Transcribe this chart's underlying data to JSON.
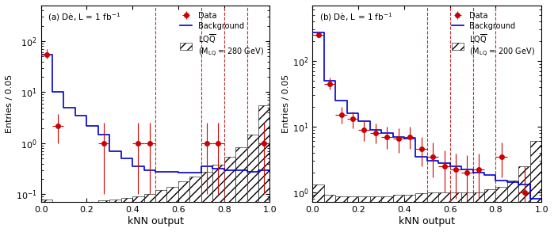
{
  "panel_a": {
    "title": "(a) Dè, L = 1 fb$^{-1}$",
    "ylabel": "Entries / 0.05",
    "xlabel": "kNN output",
    "ylim_log": [
      0.07,
      500
    ],
    "vlines": [
      0.5,
      0.7,
      0.8,
      0.9
    ],
    "bg_bins": [
      0.0,
      0.05,
      0.1,
      0.15,
      0.2,
      0.25,
      0.3,
      0.35,
      0.4,
      0.45,
      0.5,
      0.55,
      0.6,
      0.65,
      0.7,
      0.75,
      0.8,
      0.85,
      0.9,
      0.95,
      1.0
    ],
    "bg_vals": [
      55,
      10,
      5,
      3.5,
      2.2,
      1.5,
      0.7,
      0.5,
      0.35,
      0.3,
      0.28,
      0.28,
      0.27,
      0.27,
      0.35,
      0.32,
      0.3,
      0.3,
      0.28,
      0.3
    ],
    "signal_vals": [
      0.08,
      0.07,
      0.07,
      0.07,
      0.07,
      0.075,
      0.08,
      0.085,
      0.09,
      0.1,
      0.12,
      0.14,
      0.18,
      0.22,
      0.28,
      0.38,
      0.55,
      0.85,
      1.5,
      5.5
    ],
    "data_x": [
      0.025,
      0.075,
      0.275,
      0.425,
      0.475,
      0.725,
      0.775,
      0.975
    ],
    "data_y": [
      55,
      2.2,
      1.0,
      1.0,
      1.0,
      1.0,
      1.0,
      1.0
    ],
    "data_yerr_lo": [
      10,
      1.2,
      0.9,
      0.9,
      0.9,
      0.9,
      0.9,
      0.9
    ],
    "data_yerr_hi": [
      15,
      1.5,
      1.5,
      1.5,
      1.5,
      1.5,
      1.5,
      1.5
    ],
    "data_xerr": [
      0.025,
      0.025,
      0.025,
      0.025,
      0.025,
      0.025,
      0.025,
      0.025
    ],
    "lq_label_line1": "LQ$\\overline{\\mathrm{Q}}$",
    "lq_label_line2": "(M$_{\\mathrm{LQ}}$ = 280 GeV)"
  },
  "panel_b": {
    "title": "(b) Dè, L = 1 fb$^{-1}$",
    "ylabel": "Entries / 0.05",
    "xlabel": "kNN output",
    "ylim_log": [
      0.7,
      700
    ],
    "vlines": [
      0.5,
      0.6,
      0.7,
      0.8
    ],
    "bg_bins": [
      0.0,
      0.05,
      0.1,
      0.15,
      0.2,
      0.25,
      0.3,
      0.35,
      0.4,
      0.45,
      0.5,
      0.55,
      0.6,
      0.65,
      0.7,
      0.75,
      0.8,
      0.85,
      0.9,
      0.95,
      1.0
    ],
    "bg_vals": [
      270,
      50,
      25,
      16,
      12,
      9,
      8,
      7,
      6.5,
      3.5,
      3.0,
      2.8,
      2.5,
      2.2,
      2.0,
      1.8,
      1.5,
      1.4,
      1.3,
      0.8
    ],
    "signal_vals": [
      1.3,
      0.9,
      0.85,
      0.85,
      0.85,
      0.85,
      0.85,
      0.9,
      0.92,
      0.95,
      1.0,
      1.0,
      1.0,
      1.0,
      1.0,
      1.1,
      1.2,
      1.5,
      2.5,
      6.0
    ],
    "data_x": [
      0.025,
      0.075,
      0.125,
      0.175,
      0.225,
      0.275,
      0.325,
      0.375,
      0.425,
      0.475,
      0.525,
      0.575,
      0.625,
      0.675,
      0.725,
      0.825,
      0.925
    ],
    "data_y": [
      250,
      45,
      15,
      13,
      9,
      8,
      7,
      6.5,
      7,
      4.5,
      3.5,
      2.5,
      2.2,
      2.0,
      2.2,
      3.5,
      1.0
    ],
    "data_yerr_lo": [
      20,
      8,
      4,
      3.5,
      3,
      2.5,
      2.5,
      2.5,
      2.5,
      2.0,
      1.8,
      1.5,
      1.4,
      1.4,
      1.4,
      1.8,
      0.9
    ],
    "data_yerr_hi": [
      25,
      10,
      5,
      4,
      3.5,
      3,
      3,
      3,
      3,
      2.5,
      2.2,
      1.8,
      1.7,
      1.7,
      1.7,
      2.2,
      1.5
    ],
    "data_xerr": [
      0.025,
      0.025,
      0.025,
      0.025,
      0.025,
      0.025,
      0.025,
      0.025,
      0.025,
      0.025,
      0.025,
      0.025,
      0.025,
      0.025,
      0.025,
      0.025,
      0.025
    ],
    "lq_label_line1": "LQ$\\overline{\\mathrm{Q}}$",
    "lq_label_line2": "(M$_{\\mathrm{LQ}}$ = 200 GeV)"
  },
  "bg_color": "#0000cc",
  "data_color": "#cc0000",
  "bg_linewidth": 1.2,
  "data_markersize": 4,
  "fig_facecolor": "#ffffff",
  "title_a": "(a) Dè, L = 1 fb$^{-1}$",
  "title_b": "(b) Dè, L = 1 fb$^{-1}$"
}
